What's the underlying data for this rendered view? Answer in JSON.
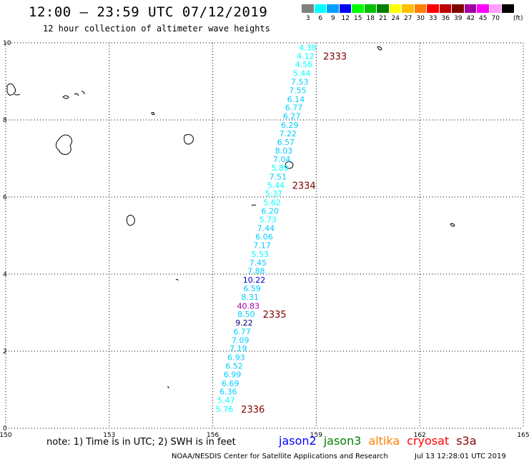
{
  "header": {
    "title": "12:00 – 23:59 UTC 07/12/2019",
    "subtitle": "12 hour collection of altimeter wave heights"
  },
  "color_scale": {
    "unit": "(ft)",
    "swatches": [
      {
        "label": "3",
        "color": "#808080"
      },
      {
        "label": "6",
        "color": "#00ffff"
      },
      {
        "label": "9",
        "color": "#00a0ff"
      },
      {
        "label": "12",
        "color": "#0000ff"
      },
      {
        "label": "15",
        "color": "#00ff00"
      },
      {
        "label": "18",
        "color": "#00c000"
      },
      {
        "label": "21",
        "color": "#008000"
      },
      {
        "label": "24",
        "color": "#ffff00"
      },
      {
        "label": "27",
        "color": "#ffc000"
      },
      {
        "label": "30",
        "color": "#ff8000"
      },
      {
        "label": "33",
        "color": "#ff0000"
      },
      {
        "label": "36",
        "color": "#c00000"
      },
      {
        "label": "39",
        "color": "#800000"
      },
      {
        "label": "42",
        "color": "#a000a0"
      },
      {
        "label": "45",
        "color": "#ff00ff"
      },
      {
        "label": "70",
        "color": "#ffa0ff"
      },
      {
        "label": "",
        "color": "#000000"
      }
    ]
  },
  "chart_data": {
    "type": "scatter",
    "xlim": [
      150,
      165
    ],
    "ylim": [
      0,
      10
    ],
    "x_ticks": [
      "150",
      "153",
      "156",
      "159",
      "162",
      "165"
    ],
    "y_ticks": [
      "0",
      "2",
      "4",
      "6",
      "8",
      "10"
    ],
    "grid": true,
    "observations": [
      {
        "lon": 158.75,
        "lat": 9.88,
        "swh": "4.38",
        "color": "#00ffff"
      },
      {
        "lon": 158.69,
        "lat": 9.66,
        "swh": "4.12",
        "color": "#00ffff"
      },
      {
        "lon": 158.64,
        "lat": 9.44,
        "swh": "4.56",
        "color": "#00ffff"
      },
      {
        "lon": 158.58,
        "lat": 9.21,
        "swh": "5.44",
        "color": "#00ffff"
      },
      {
        "lon": 158.52,
        "lat": 8.99,
        "swh": "7.53",
        "color": "#00ccff"
      },
      {
        "lon": 158.46,
        "lat": 8.77,
        "swh": "7.55",
        "color": "#00ccff"
      },
      {
        "lon": 158.41,
        "lat": 8.54,
        "swh": "6.14",
        "color": "#00ccff"
      },
      {
        "lon": 158.35,
        "lat": 8.32,
        "swh": "6.77",
        "color": "#00ccff"
      },
      {
        "lon": 158.29,
        "lat": 8.1,
        "swh": "6.27",
        "color": "#00ccff"
      },
      {
        "lon": 158.23,
        "lat": 7.87,
        "swh": "6.29",
        "color": "#00ccff"
      },
      {
        "lon": 158.18,
        "lat": 7.65,
        "swh": "7.22",
        "color": "#00ccff"
      },
      {
        "lon": 158.12,
        "lat": 7.43,
        "swh": "6.57",
        "color": "#00ccff"
      },
      {
        "lon": 158.06,
        "lat": 7.2,
        "swh": "8.03",
        "color": "#00ccff"
      },
      {
        "lon": 158.0,
        "lat": 6.98,
        "swh": "7.04",
        "color": "#00ccff"
      },
      {
        "lon": 157.95,
        "lat": 6.76,
        "swh": "5.89",
        "color": "#00ffff"
      },
      {
        "lon": 157.89,
        "lat": 6.53,
        "swh": "7.51",
        "color": "#00ccff"
      },
      {
        "lon": 157.83,
        "lat": 6.31,
        "swh": "5.44",
        "color": "#00ffff"
      },
      {
        "lon": 157.77,
        "lat": 6.09,
        "swh": "5.37",
        "color": "#00ffff"
      },
      {
        "lon": 157.72,
        "lat": 5.86,
        "swh": "5.62",
        "color": "#00ffff"
      },
      {
        "lon": 157.66,
        "lat": 5.64,
        "swh": "6.20",
        "color": "#00ccff"
      },
      {
        "lon": 157.6,
        "lat": 5.42,
        "swh": "5.73",
        "color": "#00ffff"
      },
      {
        "lon": 157.54,
        "lat": 5.19,
        "swh": "7.44",
        "color": "#00ccff"
      },
      {
        "lon": 157.49,
        "lat": 4.97,
        "swh": "6.06",
        "color": "#00ccff"
      },
      {
        "lon": 157.43,
        "lat": 4.75,
        "swh": "7.17",
        "color": "#00ccff"
      },
      {
        "lon": 157.37,
        "lat": 4.52,
        "swh": "5.53",
        "color": "#00ffff"
      },
      {
        "lon": 157.31,
        "lat": 4.3,
        "swh": "7.45",
        "color": "#00ccff"
      },
      {
        "lon": 157.26,
        "lat": 4.08,
        "swh": "7.88",
        "color": "#00ccff"
      },
      {
        "lon": 157.2,
        "lat": 3.85,
        "swh": "10.22",
        "color": "#0000cc"
      },
      {
        "lon": 157.14,
        "lat": 3.63,
        "swh": "6.59",
        "color": "#00ccff"
      },
      {
        "lon": 157.08,
        "lat": 3.41,
        "swh": "8.31",
        "color": "#00ccff"
      },
      {
        "lon": 157.03,
        "lat": 3.18,
        "swh": "40.83",
        "color": "#a000a0"
      },
      {
        "lon": 156.97,
        "lat": 2.96,
        "swh": "8.50",
        "color": "#00ccff"
      },
      {
        "lon": 156.91,
        "lat": 2.74,
        "swh": "9.22",
        "color": "#000080"
      },
      {
        "lon": 156.85,
        "lat": 2.51,
        "swh": "6.77",
        "color": "#00ccff"
      },
      {
        "lon": 156.8,
        "lat": 2.29,
        "swh": "7.09",
        "color": "#00ccff"
      },
      {
        "lon": 156.74,
        "lat": 2.07,
        "swh": "7.19",
        "color": "#00ccff"
      },
      {
        "lon": 156.68,
        "lat": 1.84,
        "swh": "6.93",
        "color": "#00ccff"
      },
      {
        "lon": 156.62,
        "lat": 1.62,
        "swh": "6.52",
        "color": "#00ccff"
      },
      {
        "lon": 156.57,
        "lat": 1.4,
        "swh": "6.99",
        "color": "#00ccff"
      },
      {
        "lon": 156.51,
        "lat": 1.17,
        "swh": "6.69",
        "color": "#00ccff"
      },
      {
        "lon": 156.45,
        "lat": 0.95,
        "swh": "6.36",
        "color": "#00ccff"
      },
      {
        "lon": 156.39,
        "lat": 0.73,
        "swh": "5.47",
        "color": "#00ffff"
      },
      {
        "lon": 156.34,
        "lat": 0.5,
        "swh": "5.76",
        "color": "#00ffff"
      }
    ],
    "pass_labels": [
      {
        "label": "2333",
        "lon": 159.2,
        "lat": 9.66,
        "color": "#800000"
      },
      {
        "label": "2334",
        "lon": 158.3,
        "lat": 6.31,
        "color": "#800000"
      },
      {
        "label": "2335",
        "lon": 157.45,
        "lat": 2.96,
        "color": "#800000"
      },
      {
        "label": "2336",
        "lon": 156.82,
        "lat": 0.5,
        "color": "#800000"
      }
    ]
  },
  "footer": {
    "note": "note: 1) Time is in UTC; 2) SWH is in feet",
    "legend": [
      {
        "label": "jason2",
        "color": "#0000ff"
      },
      {
        "label": "jason3",
        "color": "#008000"
      },
      {
        "label": "altika",
        "color": "#ff8000"
      },
      {
        "label": "cryosat",
        "color": "#ff0000"
      },
      {
        "label": "s3a",
        "color": "#800000"
      }
    ],
    "credit": "NOAA/NESDIS Center for Satellite Applications and Research",
    "timestamp": "Jul 13 12:28:01 UTC 2019"
  }
}
